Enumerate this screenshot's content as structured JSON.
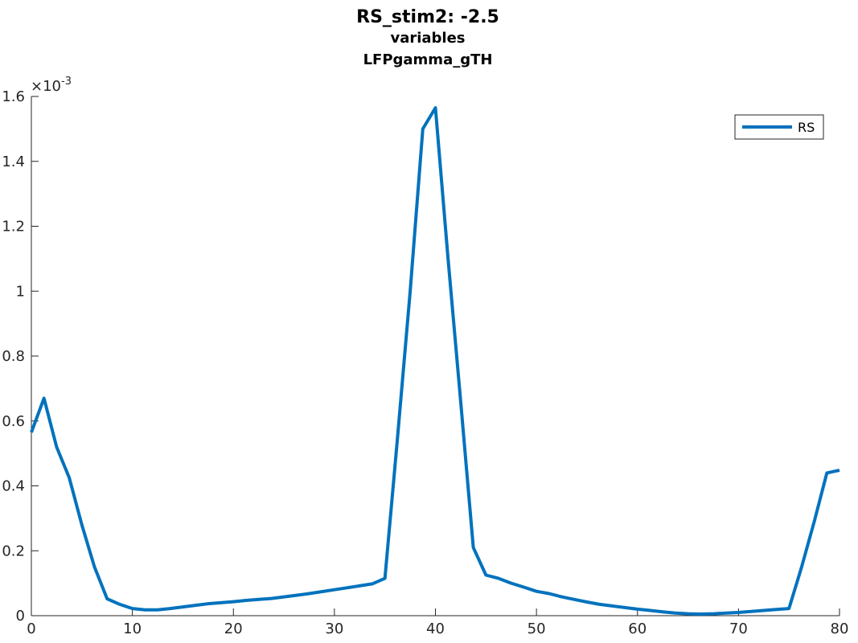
{
  "chart_data": {
    "type": "line",
    "title": "RS_stim2: -2.5",
    "subtitle_lines": [
      "variables",
      "LFPgamma_gTH"
    ],
    "xlabel": "",
    "ylabel": "",
    "xlim": [
      0,
      80
    ],
    "ylim": [
      0,
      0.0016
    ],
    "x_ticks": [
      0,
      10,
      20,
      30,
      40,
      50,
      60,
      70,
      80
    ],
    "x_tick_labels": [
      "0",
      "10",
      "20",
      "30",
      "40",
      "50",
      "60",
      "70",
      "80"
    ],
    "y_ticks": [
      0,
      0.0002,
      0.0004,
      0.0006,
      0.0008,
      0.001,
      0.0012,
      0.0014,
      0.0016
    ],
    "y_tick_labels": [
      "0",
      "0.2",
      "0.4",
      "0.6",
      "0.8",
      "1",
      "1.2",
      "1.4",
      "1.6"
    ],
    "y_exponent_label": "×10",
    "y_exponent_power": "-3",
    "grid": false,
    "legend_position": "top-right",
    "color": "#0072BD",
    "series": [
      {
        "name": "RS",
        "x": [
          0,
          1.25,
          2.5,
          3.75,
          5,
          6.25,
          7.5,
          8.75,
          10,
          11.25,
          12.5,
          13.75,
          15,
          16.25,
          17.5,
          18.75,
          20,
          21.25,
          22.5,
          23.75,
          25,
          26.25,
          27.5,
          28.75,
          30,
          31.25,
          32.5,
          33.75,
          35,
          36.25,
          37.5,
          38.75,
          40,
          41.25,
          42.5,
          43.75,
          45,
          46.25,
          47.5,
          48.75,
          50,
          51.25,
          52.5,
          53.75,
          55,
          56.25,
          57.5,
          58.75,
          60,
          61.25,
          62.5,
          63.75,
          65,
          66.25,
          67.5,
          68.75,
          70,
          71.25,
          72.5,
          73.75,
          75,
          76.25,
          77.5,
          78.75,
          80
        ],
        "values": [
          0.000565,
          0.00067,
          0.00052,
          0.000425,
          0.00028,
          0.00015,
          5.2e-05,
          3.5e-05,
          2.2e-05,
          1.8e-05,
          1.8e-05,
          2.2e-05,
          2.7e-05,
          3.2e-05,
          3.7e-05,
          4e-05,
          4.3e-05,
          4.7e-05,
          5e-05,
          5.3e-05,
          5.8e-05,
          6.3e-05,
          6.8e-05,
          7.4e-05,
          8e-05,
          8.6e-05,
          9.2e-05,
          9.8e-05,
          0.000115,
          0.00055,
          0.001,
          0.0015,
          0.001565,
          0.0011,
          0.00066,
          0.00021,
          0.000125,
          0.000115,
          0.0001,
          8.8e-05,
          7.5e-05,
          6.8e-05,
          5.8e-05,
          5e-05,
          4.2e-05,
          3.5e-05,
          3e-05,
          2.5e-05,
          2e-05,
          1.6e-05,
          1.2e-05,
          8e-06,
          6e-06,
          5e-06,
          6e-06,
          8e-06,
          1e-05,
          1.3e-05,
          1.6e-05,
          1.9e-05,
          2.2e-05,
          0.00015,
          0.00029,
          0.00044,
          0.000448
        ]
      }
    ]
  }
}
